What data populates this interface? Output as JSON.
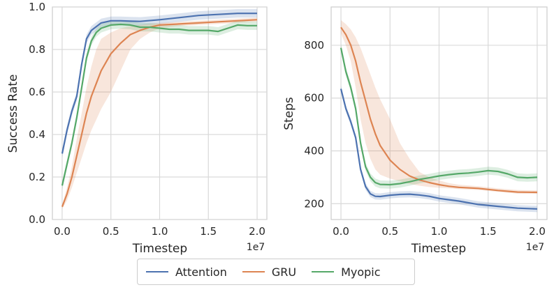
{
  "legend": {
    "items": [
      {
        "name": "Attention",
        "color": "#4c72b0"
      },
      {
        "name": "GRU",
        "color": "#dd8452"
      },
      {
        "name": "Myopic",
        "color": "#55a868"
      }
    ]
  },
  "chart_data": [
    {
      "type": "line",
      "title": "",
      "xlabel": "Timestep",
      "ylabel": "Success Rate",
      "x_offset_label": "1e7",
      "xlim": [
        -0.1,
        2.1
      ],
      "ylim": [
        0.0,
        1.0
      ],
      "xticks": [
        0.0,
        0.5,
        1.0,
        1.5,
        2.0
      ],
      "xtick_labels": [
        "0.0",
        "0.5",
        "1.0",
        "1.5",
        "2.0"
      ],
      "yticks": [
        0.0,
        0.2,
        0.4,
        0.6,
        0.8,
        1.0
      ],
      "ytick_labels": [
        "0.0",
        "0.2",
        "0.4",
        "0.6",
        "0.8",
        "1.0"
      ],
      "grid": true,
      "series": [
        {
          "name": "Attention",
          "color": "#4c72b0",
          "x": [
            0.0,
            0.05,
            0.1,
            0.15,
            0.2,
            0.25,
            0.3,
            0.4,
            0.5,
            0.6,
            0.7,
            0.8,
            1.0,
            1.2,
            1.4,
            1.6,
            1.8,
            2.0
          ],
          "y": [
            0.31,
            0.42,
            0.51,
            0.58,
            0.73,
            0.85,
            0.89,
            0.925,
            0.935,
            0.935,
            0.933,
            0.932,
            0.94,
            0.95,
            0.96,
            0.965,
            0.97,
            0.97
          ],
          "band": 0.02
        },
        {
          "name": "GRU",
          "color": "#dd8452",
          "x": [
            0.0,
            0.05,
            0.1,
            0.15,
            0.2,
            0.25,
            0.3,
            0.35,
            0.4,
            0.5,
            0.6,
            0.7,
            0.8,
            0.9,
            1.0,
            1.2,
            1.4,
            1.6,
            1.8,
            2.0
          ],
          "y": [
            0.06,
            0.12,
            0.2,
            0.3,
            0.4,
            0.5,
            0.58,
            0.64,
            0.7,
            0.78,
            0.83,
            0.87,
            0.89,
            0.905,
            0.915,
            0.92,
            0.925,
            0.93,
            0.935,
            0.94
          ],
          "band_lower": [
            0.05,
            0.09,
            0.15,
            0.22,
            0.29,
            0.36,
            0.42,
            0.47,
            0.52,
            0.6,
            0.7,
            0.8,
            0.85,
            0.88,
            0.9,
            0.91,
            0.915,
            0.92,
            0.925,
            0.93
          ],
          "band_upper": [
            0.07,
            0.15,
            0.25,
            0.38,
            0.5,
            0.62,
            0.72,
            0.8,
            0.85,
            0.88,
            0.9,
            0.91,
            0.915,
            0.92,
            0.925,
            0.93,
            0.935,
            0.94,
            0.945,
            0.95
          ]
        },
        {
          "name": "Myopic",
          "color": "#55a868",
          "x": [
            0.0,
            0.05,
            0.1,
            0.15,
            0.2,
            0.25,
            0.3,
            0.35,
            0.4,
            0.5,
            0.6,
            0.7,
            0.8,
            0.9,
            1.0,
            1.1,
            1.2,
            1.3,
            1.4,
            1.5,
            1.6,
            1.7,
            1.8,
            1.9,
            2.0
          ],
          "y": [
            0.16,
            0.26,
            0.36,
            0.48,
            0.62,
            0.76,
            0.84,
            0.88,
            0.9,
            0.915,
            0.918,
            0.915,
            0.905,
            0.905,
            0.9,
            0.895,
            0.895,
            0.89,
            0.89,
            0.89,
            0.885,
            0.9,
            0.915,
            0.912,
            0.912
          ],
          "band": 0.02
        }
      ]
    },
    {
      "type": "line",
      "title": "",
      "xlabel": "Timestep",
      "ylabel": "Steps",
      "x_offset_label": "1e7",
      "xlim": [
        -0.1,
        2.1
      ],
      "ylim": [
        140,
        945
      ],
      "xticks": [
        0.0,
        0.5,
        1.0,
        1.5,
        2.0
      ],
      "xtick_labels": [
        "0.0",
        "0.5",
        "1.0",
        "1.5",
        "2.0"
      ],
      "yticks": [
        200,
        400,
        600,
        800
      ],
      "ytick_labels": [
        "200",
        "400",
        "600",
        "800"
      ],
      "grid": true,
      "series": [
        {
          "name": "Attention",
          "color": "#4c72b0",
          "x": [
            0.0,
            0.05,
            0.1,
            0.15,
            0.2,
            0.25,
            0.3,
            0.35,
            0.4,
            0.5,
            0.6,
            0.7,
            0.8,
            0.9,
            1.0,
            1.2,
            1.4,
            1.6,
            1.8,
            2.0
          ],
          "y": [
            635,
            560,
            510,
            450,
            330,
            265,
            237,
            228,
            227,
            232,
            235,
            236,
            233,
            228,
            220,
            210,
            197,
            190,
            183,
            180
          ],
          "band": 12
        },
        {
          "name": "GRU",
          "color": "#dd8452",
          "x": [
            0.0,
            0.05,
            0.1,
            0.15,
            0.2,
            0.25,
            0.3,
            0.35,
            0.4,
            0.5,
            0.6,
            0.7,
            0.8,
            0.9,
            1.0,
            1.1,
            1.2,
            1.4,
            1.6,
            1.8,
            2.0
          ],
          "y": [
            868,
            840,
            800,
            740,
            660,
            590,
            520,
            465,
            420,
            365,
            330,
            305,
            290,
            280,
            272,
            266,
            262,
            258,
            250,
            244,
            243
          ],
          "band_lower": [
            845,
            800,
            740,
            640,
            520,
            430,
            370,
            330,
            310,
            295,
            285,
            275,
            268,
            263,
            260,
            258,
            255,
            252,
            245,
            238,
            237
          ],
          "band_upper": [
            895,
            880,
            860,
            830,
            790,
            740,
            690,
            640,
            595,
            520,
            430,
            370,
            320,
            300,
            288,
            278,
            272,
            266,
            258,
            252,
            250
          ]
        },
        {
          "name": "Myopic",
          "color": "#55a868",
          "x": [
            0.0,
            0.05,
            0.1,
            0.15,
            0.2,
            0.25,
            0.3,
            0.35,
            0.4,
            0.5,
            0.6,
            0.7,
            0.8,
            0.9,
            1.0,
            1.1,
            1.2,
            1.3,
            1.4,
            1.5,
            1.6,
            1.7,
            1.8,
            1.9,
            2.0
          ],
          "y": [
            790,
            700,
            640,
            560,
            430,
            340,
            300,
            280,
            273,
            272,
            276,
            283,
            292,
            298,
            305,
            310,
            314,
            316,
            320,
            325,
            322,
            313,
            300,
            298,
            300
          ],
          "band": 15
        }
      ]
    }
  ]
}
